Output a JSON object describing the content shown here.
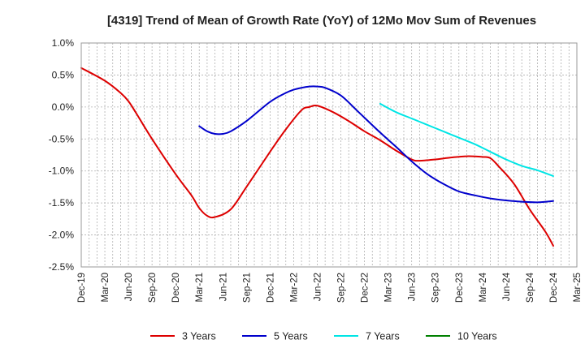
{
  "chart_data": {
    "type": "line",
    "title": "[4319]  Trend of Mean of Growth Rate (YoY) of 12Mo Mov Sum of Revenues",
    "xlabel": "",
    "ylabel": "",
    "ylim": [
      -2.5,
      1.0
    ],
    "yticks": [
      1.0,
      0.5,
      0.0,
      -0.5,
      -1.0,
      -1.5,
      -2.0,
      -2.5
    ],
    "ytick_labels": [
      "1.0%",
      "0.5%",
      "0.0%",
      "-0.5%",
      "-1.0%",
      "-1.5%",
      "-2.0%",
      "-2.5%"
    ],
    "x_start": "Dec-19",
    "x_months": 63,
    "xtick_labels": [
      "Dec-19",
      "Mar-20",
      "Jun-20",
      "Sep-20",
      "Dec-20",
      "Mar-21",
      "Jun-21",
      "Sep-21",
      "Dec-21",
      "Mar-22",
      "Jun-22",
      "Sep-22",
      "Dec-22",
      "Mar-23",
      "Jun-23",
      "Sep-23",
      "Dec-23",
      "Mar-24",
      "Jun-24",
      "Sep-24",
      "Dec-24",
      "Mar-25"
    ],
    "grid": true,
    "legend_position": "bottom",
    "series": [
      {
        "name": "3 Years",
        "color": "#dd0000",
        "points": [
          [
            0,
            0.61
          ],
          [
            3,
            0.41
          ],
          [
            5,
            0.22
          ],
          [
            6,
            0.09
          ],
          [
            7,
            -0.1
          ],
          [
            9,
            -0.5
          ],
          [
            12,
            -1.05
          ],
          [
            14,
            -1.38
          ],
          [
            15,
            -1.58
          ],
          [
            16,
            -1.7
          ],
          [
            17,
            -1.72
          ],
          [
            19,
            -1.6
          ],
          [
            21,
            -1.25
          ],
          [
            24,
            -0.7
          ],
          [
            26,
            -0.35
          ],
          [
            28,
            -0.05
          ],
          [
            29,
            0.0
          ],
          [
            30,
            0.02
          ],
          [
            32,
            -0.08
          ],
          [
            34,
            -0.22
          ],
          [
            36,
            -0.38
          ],
          [
            38,
            -0.52
          ],
          [
            40,
            -0.68
          ],
          [
            42,
            -0.82
          ],
          [
            43,
            -0.84
          ],
          [
            45,
            -0.82
          ],
          [
            47,
            -0.79
          ],
          [
            49,
            -0.77
          ],
          [
            51,
            -0.78
          ],
          [
            52,
            -0.8
          ],
          [
            53,
            -0.92
          ],
          [
            55,
            -1.2
          ],
          [
            57,
            -1.6
          ],
          [
            59,
            -1.95
          ],
          [
            60,
            -2.17
          ]
        ]
      },
      {
        "name": "5 Years",
        "color": "#0000cc",
        "points": [
          [
            15,
            -0.3
          ],
          [
            16,
            -0.38
          ],
          [
            17,
            -0.42
          ],
          [
            18,
            -0.42
          ],
          [
            19,
            -0.38
          ],
          [
            21,
            -0.22
          ],
          [
            24,
            0.08
          ],
          [
            26,
            0.22
          ],
          [
            27,
            0.27
          ],
          [
            28,
            0.3
          ],
          [
            29,
            0.32
          ],
          [
            30,
            0.32
          ],
          [
            31,
            0.3
          ],
          [
            33,
            0.18
          ],
          [
            35,
            -0.05
          ],
          [
            38,
            -0.4
          ],
          [
            40,
            -0.62
          ],
          [
            42,
            -0.85
          ],
          [
            44,
            -1.05
          ],
          [
            46,
            -1.2
          ],
          [
            48,
            -1.32
          ],
          [
            50,
            -1.38
          ],
          [
            52,
            -1.43
          ],
          [
            54,
            -1.46
          ],
          [
            56,
            -1.48
          ],
          [
            58,
            -1.49
          ],
          [
            60,
            -1.47
          ]
        ]
      },
      {
        "name": "7 Years",
        "color": "#00e5e5",
        "points": [
          [
            38,
            0.05
          ],
          [
            40,
            -0.08
          ],
          [
            42,
            -0.18
          ],
          [
            44,
            -0.28
          ],
          [
            46,
            -0.38
          ],
          [
            48,
            -0.48
          ],
          [
            50,
            -0.58
          ],
          [
            52,
            -0.7
          ],
          [
            54,
            -0.82
          ],
          [
            56,
            -0.92
          ],
          [
            58,
            -0.99
          ],
          [
            60,
            -1.08
          ]
        ]
      },
      {
        "name": "10 Years",
        "color": "#008000",
        "points": []
      }
    ]
  }
}
